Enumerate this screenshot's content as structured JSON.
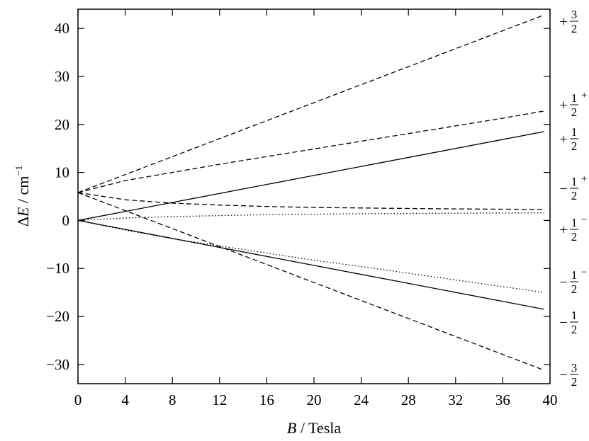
{
  "chart_data": {
    "type": "line",
    "title": "",
    "xlabel": {
      "symbol": "B",
      "unit": " / Tesla"
    },
    "ylabel": {
      "delta": "Δ",
      "symbol": "E",
      "unit": " / cm",
      "exp": "−1"
    },
    "xlim": [
      0,
      40
    ],
    "ylim": [
      -34,
      44
    ],
    "x_ticks": [
      0,
      4,
      8,
      12,
      16,
      20,
      24,
      28,
      32,
      36,
      40
    ],
    "x_tick_labels": [
      "0",
      "4",
      "8",
      "12",
      "16",
      "20",
      "24",
      "28",
      "32",
      "36",
      "40"
    ],
    "y_ticks": [
      -30,
      -20,
      -10,
      0,
      10,
      20,
      30,
      40
    ],
    "y_tick_labels": [
      "−30",
      "−20",
      "−10",
      "0",
      "10",
      "20",
      "30",
      "40"
    ],
    "grid": false,
    "series": [
      {
        "style": "dashed",
        "x": [
          0,
          39.5
        ],
        "y": [
          5.8,
          42.8
        ],
        "label": {
          "sign": "+",
          "num": "3",
          "den": "2",
          "sup": ""
        }
      },
      {
        "style": "dashed",
        "x": [
          0,
          4,
          8,
          12,
          16,
          20,
          24,
          28,
          32,
          36,
          39.5
        ],
        "y": [
          5.8,
          8.3,
          10.0,
          11.7,
          13.3,
          14.9,
          16.5,
          18.1,
          19.7,
          21.3,
          22.8
        ],
        "label": {
          "sign": "+",
          "num": "1",
          "den": "2",
          "sup": "+"
        }
      },
      {
        "style": "solid",
        "x": [
          0,
          39.5
        ],
        "y": [
          0,
          18.5
        ],
        "label": {
          "sign": "+",
          "num": "1",
          "den": "2",
          "sup": ""
        }
      },
      {
        "style": "dashed",
        "x": [
          0,
          4,
          8,
          12,
          16,
          20,
          24,
          28,
          32,
          36,
          39.5
        ],
        "y": [
          5.8,
          4.3,
          3.6,
          3.2,
          2.9,
          2.7,
          2.6,
          2.5,
          2.4,
          2.35,
          2.3
        ],
        "label": {
          "sign": "−",
          "num": "1",
          "den": "2",
          "sup": "+"
        }
      },
      {
        "style": "dotted",
        "x": [
          0,
          4,
          8,
          12,
          16,
          20,
          24,
          28,
          32,
          36,
          39.5
        ],
        "y": [
          0,
          0.5,
          0.8,
          1.0,
          1.2,
          1.3,
          1.4,
          1.45,
          1.5,
          1.55,
          1.6
        ],
        "label": {
          "sign": "+",
          "num": "1",
          "den": "2",
          "sup": "−"
        }
      },
      {
        "style": "dotted",
        "x": [
          0,
          4,
          8,
          12,
          16,
          20,
          24,
          28,
          32,
          36,
          39.5
        ],
        "y": [
          0,
          -2.0,
          -3.8,
          -5.3,
          -6.8,
          -8.3,
          -9.6,
          -11.0,
          -12.4,
          -13.8,
          -15.0
        ],
        "label": {
          "sign": "−",
          "num": "1",
          "den": "2",
          "sup": "−"
        }
      },
      {
        "style": "solid",
        "x": [
          0,
          39.5
        ],
        "y": [
          0,
          -18.5
        ],
        "label": {
          "sign": "−",
          "num": "1",
          "den": "2",
          "sup": ""
        }
      },
      {
        "style": "dashed",
        "x": [
          0,
          39.5
        ],
        "y": [
          5.8,
          -31.2
        ],
        "label": {
          "sign": "−",
          "num": "3",
          "den": "2",
          "sup": ""
        }
      }
    ]
  }
}
